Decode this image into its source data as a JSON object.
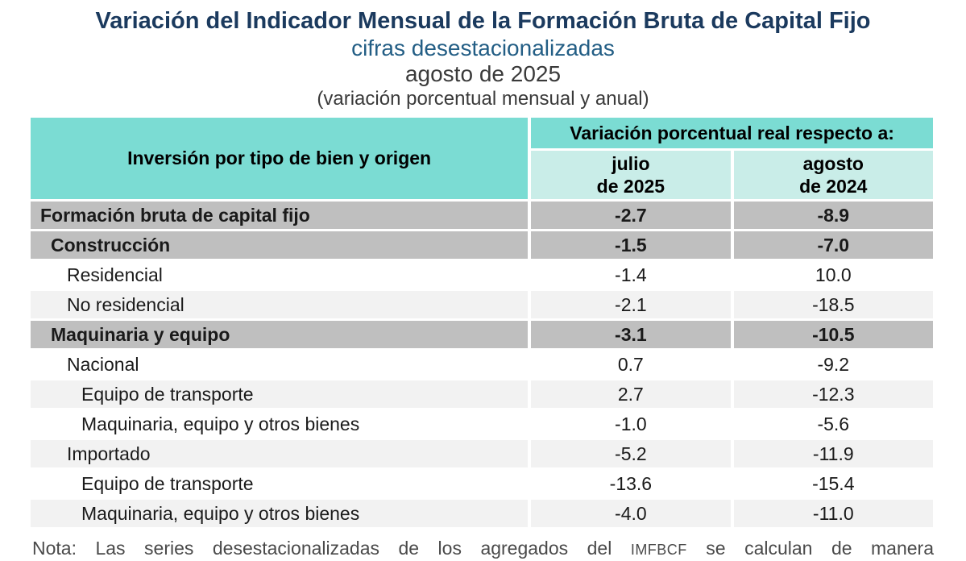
{
  "header": {
    "title": "Variación del Indicador Mensual de la Formación Bruta de Capital Fijo",
    "subtitle": "cifras desestacionalizadas",
    "period": "agosto de 2025",
    "measure_note": "(variación porcentual mensual y anual)"
  },
  "table": {
    "corner_header": "Inversión por tipo de bien y origen",
    "group_header": "Variación porcentual real respecto a:",
    "col_headers": [
      "julio\nde 2025",
      "agosto\nde 2024"
    ],
    "rows": [
      {
        "label": "Formación bruta de capital fijo",
        "values": [
          "-2.7",
          "-8.9"
        ],
        "bold": true,
        "bg": "dark",
        "indent": 0
      },
      {
        "label": "Construcción",
        "values": [
          "-1.5",
          "-7.0"
        ],
        "bold": true,
        "bg": "dark",
        "indent": 1
      },
      {
        "label": "Residencial",
        "values": [
          "-1.4",
          "10.0"
        ],
        "bold": false,
        "bg": "white",
        "indent": 2
      },
      {
        "label": "No residencial",
        "values": [
          "-2.1",
          "-18.5"
        ],
        "bold": false,
        "bg": "light",
        "indent": 2
      },
      {
        "label": "Maquinaria y equipo",
        "values": [
          "-3.1",
          "-10.5"
        ],
        "bold": true,
        "bg": "dark",
        "indent": 1
      },
      {
        "label": "Nacional",
        "values": [
          "0.7",
          "-9.2"
        ],
        "bold": false,
        "bg": "white",
        "indent": 2
      },
      {
        "label": "Equipo de transporte",
        "values": [
          "2.7",
          "-12.3"
        ],
        "bold": false,
        "bg": "light",
        "indent": 3
      },
      {
        "label": "Maquinaria, equipo y otros bienes",
        "values": [
          "-1.0",
          "-5.6"
        ],
        "bold": false,
        "bg": "white",
        "indent": 3
      },
      {
        "label": "Importado",
        "values": [
          "-5.2",
          "-11.9"
        ],
        "bold": false,
        "bg": "light",
        "indent": 2
      },
      {
        "label": "Equipo de transporte",
        "values": [
          "-13.6",
          "-15.4"
        ],
        "bold": false,
        "bg": "white",
        "indent": 3
      },
      {
        "label": "Maquinaria, equipo y otros bienes",
        "values": [
          "-4.0",
          "-11.0"
        ],
        "bold": false,
        "bg": "light",
        "indent": 3
      }
    ]
  },
  "note": {
    "prefix": "Nota:",
    "text_before": "Las series desestacionalizadas de los agregados del",
    "acronym": "IMFBCF",
    "text_after": "se calculan de manera"
  },
  "colors": {
    "title_navy": "#1B3A5E",
    "subtitle_blue": "#235E85",
    "header_teal": "#7BDCD3",
    "subheader_teal": "#C9EDE8",
    "row_dark_gray": "#BFBFBF",
    "row_light_gray": "#F2F2F2",
    "note_gray": "#4A4A4A"
  },
  "chart_data": {
    "type": "table",
    "title": "Variación del Indicador Mensual de la Formación Bruta de Capital Fijo",
    "subtitle": "cifras desestacionalizadas, agosto de 2025 (variación porcentual mensual y anual)",
    "columns": [
      "Inversión por tipo de bien y origen",
      "julio de 2025",
      "agosto de 2024"
    ],
    "rows": [
      {
        "category": "Formación bruta de capital fijo",
        "level": 0,
        "vs_julio_2025": -2.7,
        "vs_agosto_2024": -8.9
      },
      {
        "category": "Construcción",
        "level": 1,
        "vs_julio_2025": -1.5,
        "vs_agosto_2024": -7.0
      },
      {
        "category": "Residencial",
        "level": 2,
        "vs_julio_2025": -1.4,
        "vs_agosto_2024": 10.0
      },
      {
        "category": "No residencial",
        "level": 2,
        "vs_julio_2025": -2.1,
        "vs_agosto_2024": -18.5
      },
      {
        "category": "Maquinaria y equipo",
        "level": 1,
        "vs_julio_2025": -3.1,
        "vs_agosto_2024": -10.5
      },
      {
        "category": "Nacional",
        "level": 2,
        "vs_julio_2025": 0.7,
        "vs_agosto_2024": -9.2
      },
      {
        "category": "Equipo de transporte",
        "level": 3,
        "vs_julio_2025": 2.7,
        "vs_agosto_2024": -12.3
      },
      {
        "category": "Maquinaria, equipo y otros bienes",
        "level": 3,
        "vs_julio_2025": -1.0,
        "vs_agosto_2024": -5.6
      },
      {
        "category": "Importado",
        "level": 2,
        "vs_julio_2025": -5.2,
        "vs_agosto_2024": -11.9
      },
      {
        "category": "Equipo de transporte",
        "level": 3,
        "vs_julio_2025": -13.6,
        "vs_agosto_2024": -15.4
      },
      {
        "category": "Maquinaria, equipo y otros bienes",
        "level": 3,
        "vs_julio_2025": -4.0,
        "vs_agosto_2024": -11.0
      }
    ]
  }
}
